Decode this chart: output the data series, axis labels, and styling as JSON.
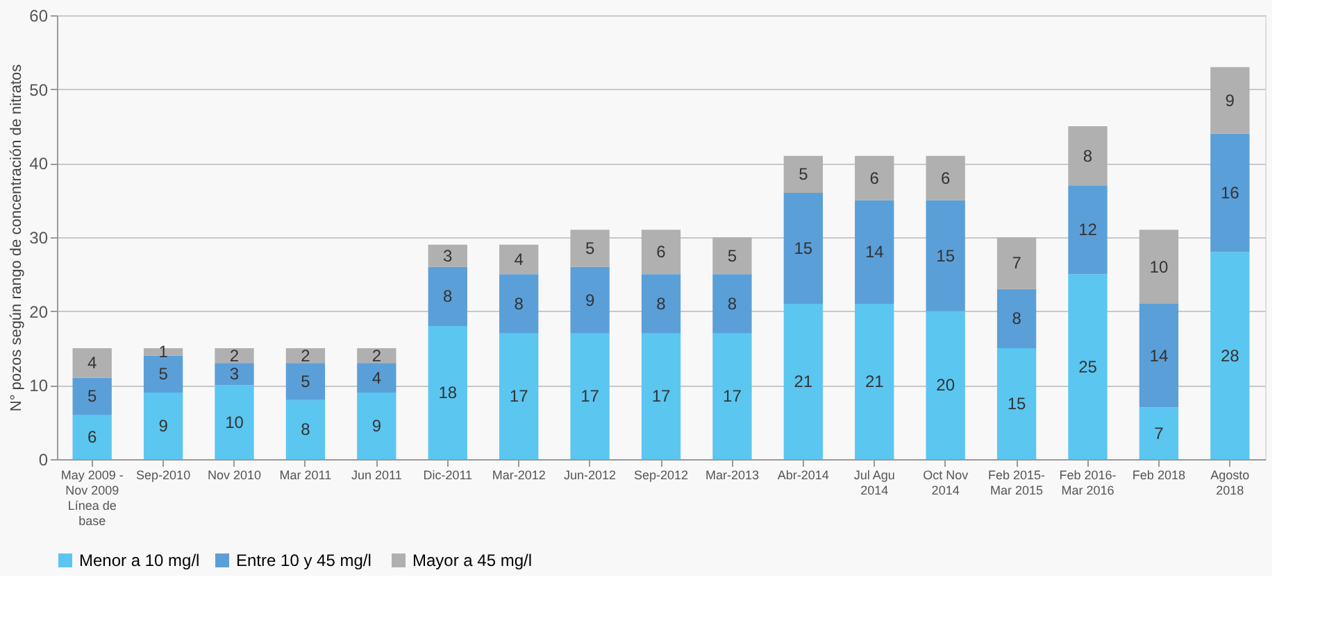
{
  "chart_data": {
    "type": "bar",
    "stacked": true,
    "ylabel": "N° pozos según rango de concentración de nitratos",
    "categories": [
      "May 2009 -\nNov 2009\nLínea de\nbase",
      "Sep-2010",
      "Nov 2010",
      "Mar 2011",
      "Jun 2011",
      "Dic-2011",
      "Mar-2012",
      "Jun-2012",
      "Sep-2012",
      "Mar-2013",
      "Abr-2014",
      "Jul Agu\n2014",
      "Oct Nov\n2014",
      "Feb 2015-\nMar 2015",
      "Feb 2016-\nMar 2016",
      "Feb 2018",
      "Agosto\n2018"
    ],
    "series": [
      {
        "name": "Menor a 10 mg/l",
        "color": "#5bc6f0",
        "values": [
          6,
          9,
          10,
          8,
          9,
          18,
          17,
          17,
          17,
          17,
          21,
          21,
          20,
          15,
          25,
          7,
          28
        ]
      },
      {
        "name": "Entre 10 y  45 mg/l",
        "color": "#5b9fd8",
        "values": [
          5,
          5,
          3,
          5,
          4,
          8,
          8,
          9,
          8,
          8,
          15,
          14,
          15,
          8,
          12,
          14,
          16
        ]
      },
      {
        "name": "Mayor a 45 mg/l",
        "color": "#b0b0b0",
        "values": [
          4,
          1,
          2,
          2,
          2,
          3,
          4,
          5,
          6,
          5,
          5,
          6,
          6,
          7,
          8,
          10,
          9
        ]
      }
    ],
    "ylim": [
      0,
      60
    ],
    "yticks": [
      0,
      10,
      20,
      30,
      40,
      50,
      60
    ],
    "grid": "y",
    "legend": "bottom",
    "data_labels": true
  }
}
